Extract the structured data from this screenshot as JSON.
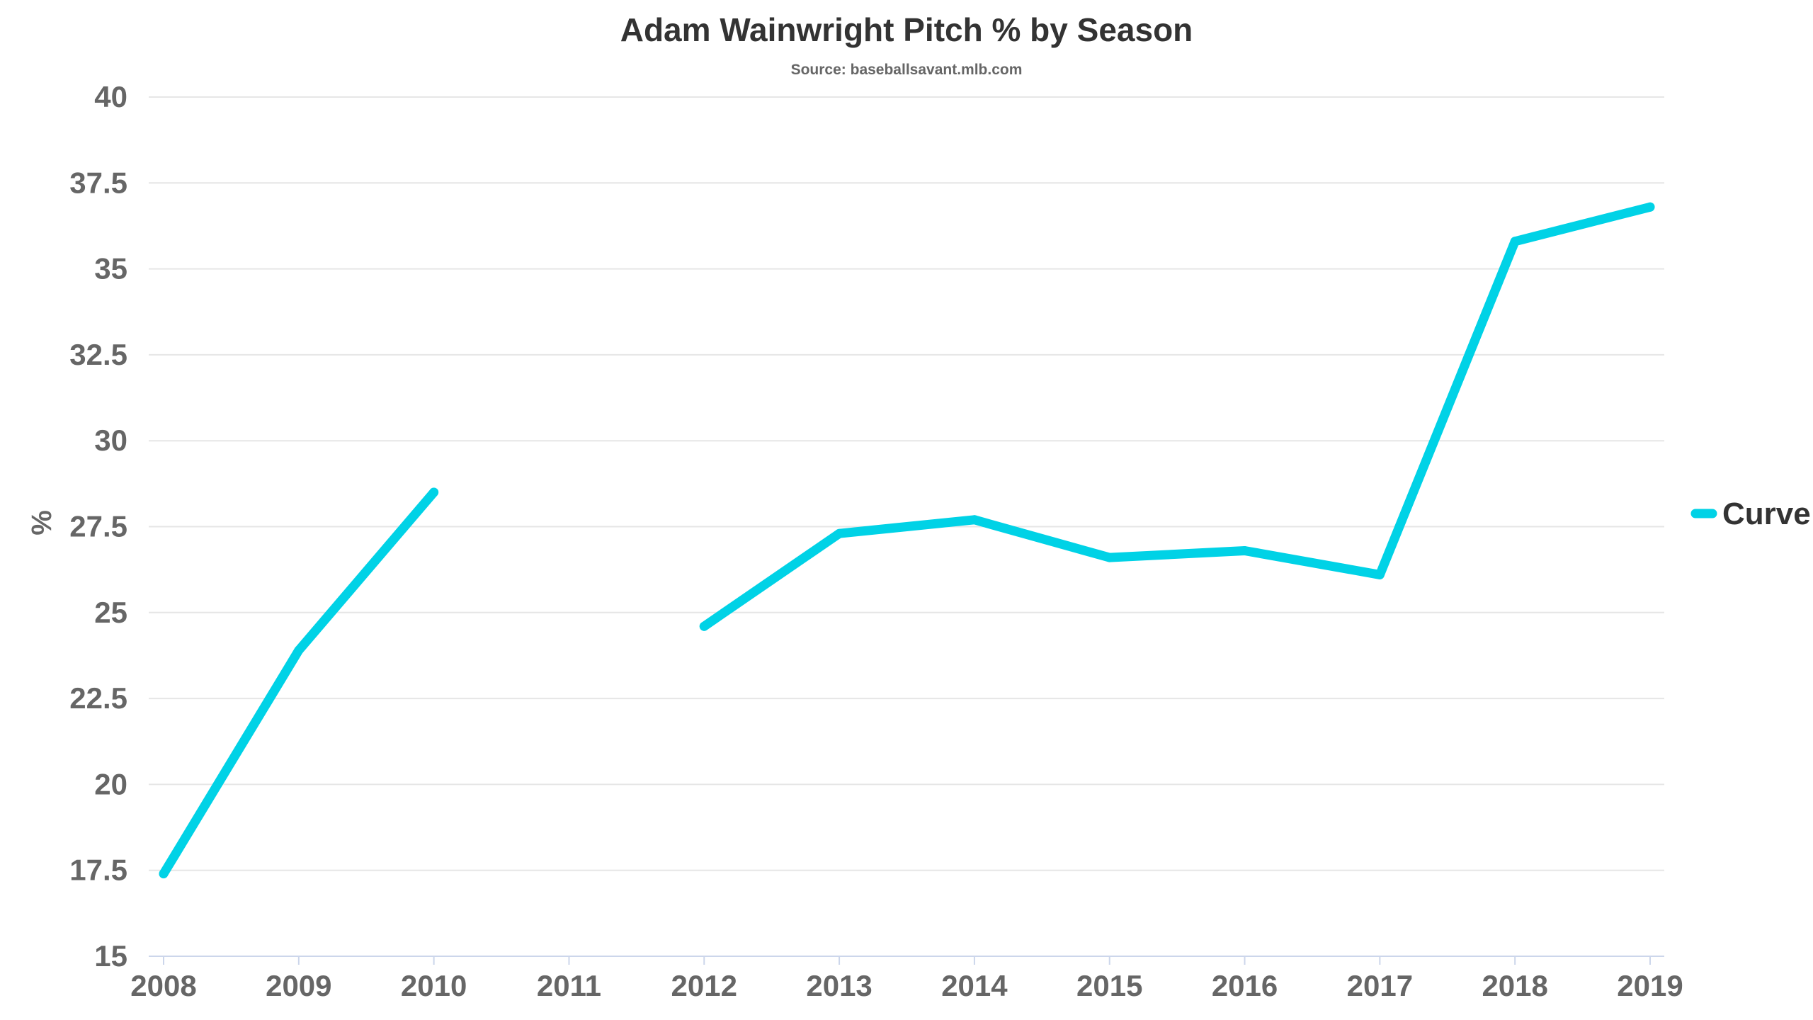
{
  "chart_data": {
    "type": "line",
    "title": "Adam Wainwright Pitch % by Season",
    "subtitle": "Source: baseballsavant.mlb.com",
    "xlabel": "",
    "ylabel": "%",
    "x": [
      2008,
      2009,
      2010,
      2011,
      2012,
      2013,
      2014,
      2015,
      2016,
      2017,
      2018,
      2019
    ],
    "x_tick_labels": [
      "2008",
      "2009",
      "2010",
      "2011",
      "2012",
      "2013",
      "2014",
      "2015",
      "2016",
      "2017",
      "2018",
      "2019"
    ],
    "ylim": [
      15,
      40
    ],
    "y_ticks": [
      15,
      17.5,
      20,
      22.5,
      25,
      27.5,
      30,
      32.5,
      35,
      37.5,
      40
    ],
    "y_tick_labels": [
      "15",
      "17.5",
      "20",
      "22.5",
      "25",
      "27.5",
      "30",
      "32.5",
      "35",
      "37.5",
      "40"
    ],
    "grid": true,
    "legend_position": "right",
    "series": [
      {
        "name": "Curve",
        "color": "#00d2e6",
        "values": [
          17.4,
          23.9,
          28.5,
          null,
          24.6,
          27.3,
          27.7,
          26.6,
          26.8,
          26.1,
          35.8,
          36.8
        ]
      }
    ]
  }
}
